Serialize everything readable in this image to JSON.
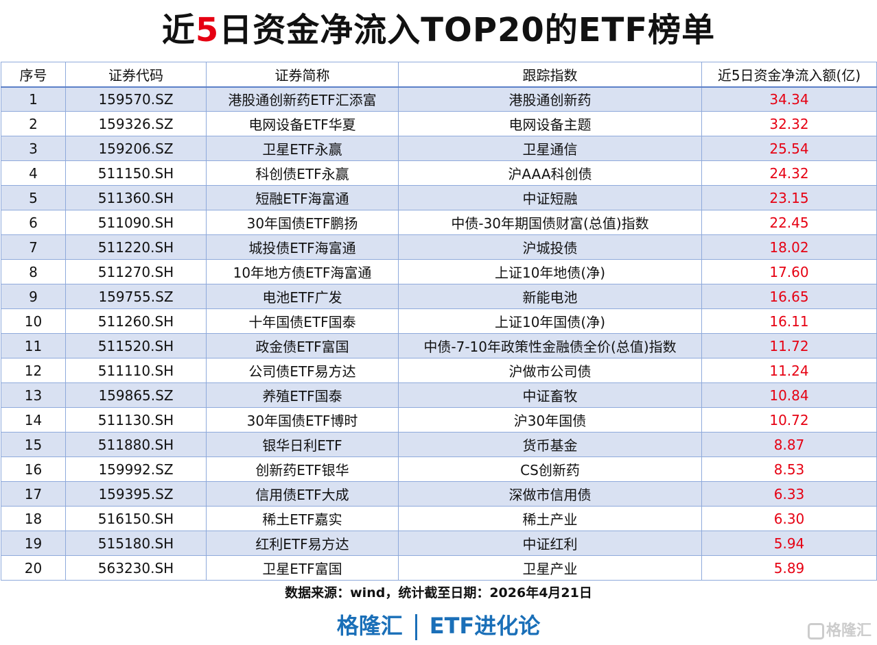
{
  "title": {
    "pre": "近",
    "highlight": "5",
    "post": "日资金净流入TOP20的ETF榜单"
  },
  "colors": {
    "accent": "#e60012",
    "odd_row": "#d9e1f2",
    "brand": "#1a6fb8"
  },
  "table": {
    "headers": [
      "序号",
      "证券代码",
      "证券简称",
      "跟踪指数",
      "近5日资金净流入额(亿)"
    ],
    "rows": [
      [
        "1",
        "159570.SZ",
        "港股通创新药ETF汇添富",
        "港股通创新药",
        "34.34"
      ],
      [
        "2",
        "159326.SZ",
        "电网设备ETF华夏",
        "电网设备主题",
        "32.32"
      ],
      [
        "3",
        "159206.SZ",
        "卫星ETF永赢",
        "卫星通信",
        "25.54"
      ],
      [
        "4",
        "511150.SH",
        "科创债ETF永赢",
        "沪AAA科创债",
        "24.32"
      ],
      [
        "5",
        "511360.SH",
        "短融ETF海富通",
        "中证短融",
        "23.15"
      ],
      [
        "6",
        "511090.SH",
        "30年国债ETF鹏扬",
        "中债-30年期国债财富(总值)指数",
        "22.45"
      ],
      [
        "7",
        "511220.SH",
        "城投债ETF海富通",
        "沪城投债",
        "18.02"
      ],
      [
        "8",
        "511270.SH",
        "10年地方债ETF海富通",
        "上证10年地债(净)",
        "17.60"
      ],
      [
        "9",
        "159755.SZ",
        "电池ETF广发",
        "新能电池",
        "16.65"
      ],
      [
        "10",
        "511260.SH",
        "十年国债ETF国泰",
        "上证10年国债(净)",
        "16.11"
      ],
      [
        "11",
        "511520.SH",
        "政金债ETF富国",
        "中债-7-10年政策性金融债全价(总值)指数",
        "11.72"
      ],
      [
        "12",
        "511110.SH",
        "公司债ETF易方达",
        "沪做市公司债",
        "11.24"
      ],
      [
        "13",
        "159865.SZ",
        "养殖ETF国泰",
        "中证畜牧",
        "10.84"
      ],
      [
        "14",
        "511130.SH",
        "30年国债ETF博时",
        "沪30年国债",
        "10.72"
      ],
      [
        "15",
        "511880.SH",
        "银华日利ETF",
        "货币基金",
        "8.87"
      ],
      [
        "16",
        "159992.SZ",
        "创新药ETF银华",
        "CS创新药",
        "8.53"
      ],
      [
        "17",
        "159395.SZ",
        "信用债ETF大成",
        "深做市信用债",
        "6.33"
      ],
      [
        "18",
        "516150.SH",
        "稀土ETF嘉实",
        "稀土产业",
        "6.30"
      ],
      [
        "19",
        "515180.SH",
        "红利ETF易方达",
        "中证红利",
        "5.94"
      ],
      [
        "20",
        "563230.SH",
        "卫星ETF富国",
        "卫星产业",
        "5.89"
      ]
    ]
  },
  "source": "数据来源：wind，统计截至日期：2026年4月21日",
  "brand": {
    "left": "格隆汇",
    "right": "ETF进化论"
  },
  "watermark": "格隆汇"
}
